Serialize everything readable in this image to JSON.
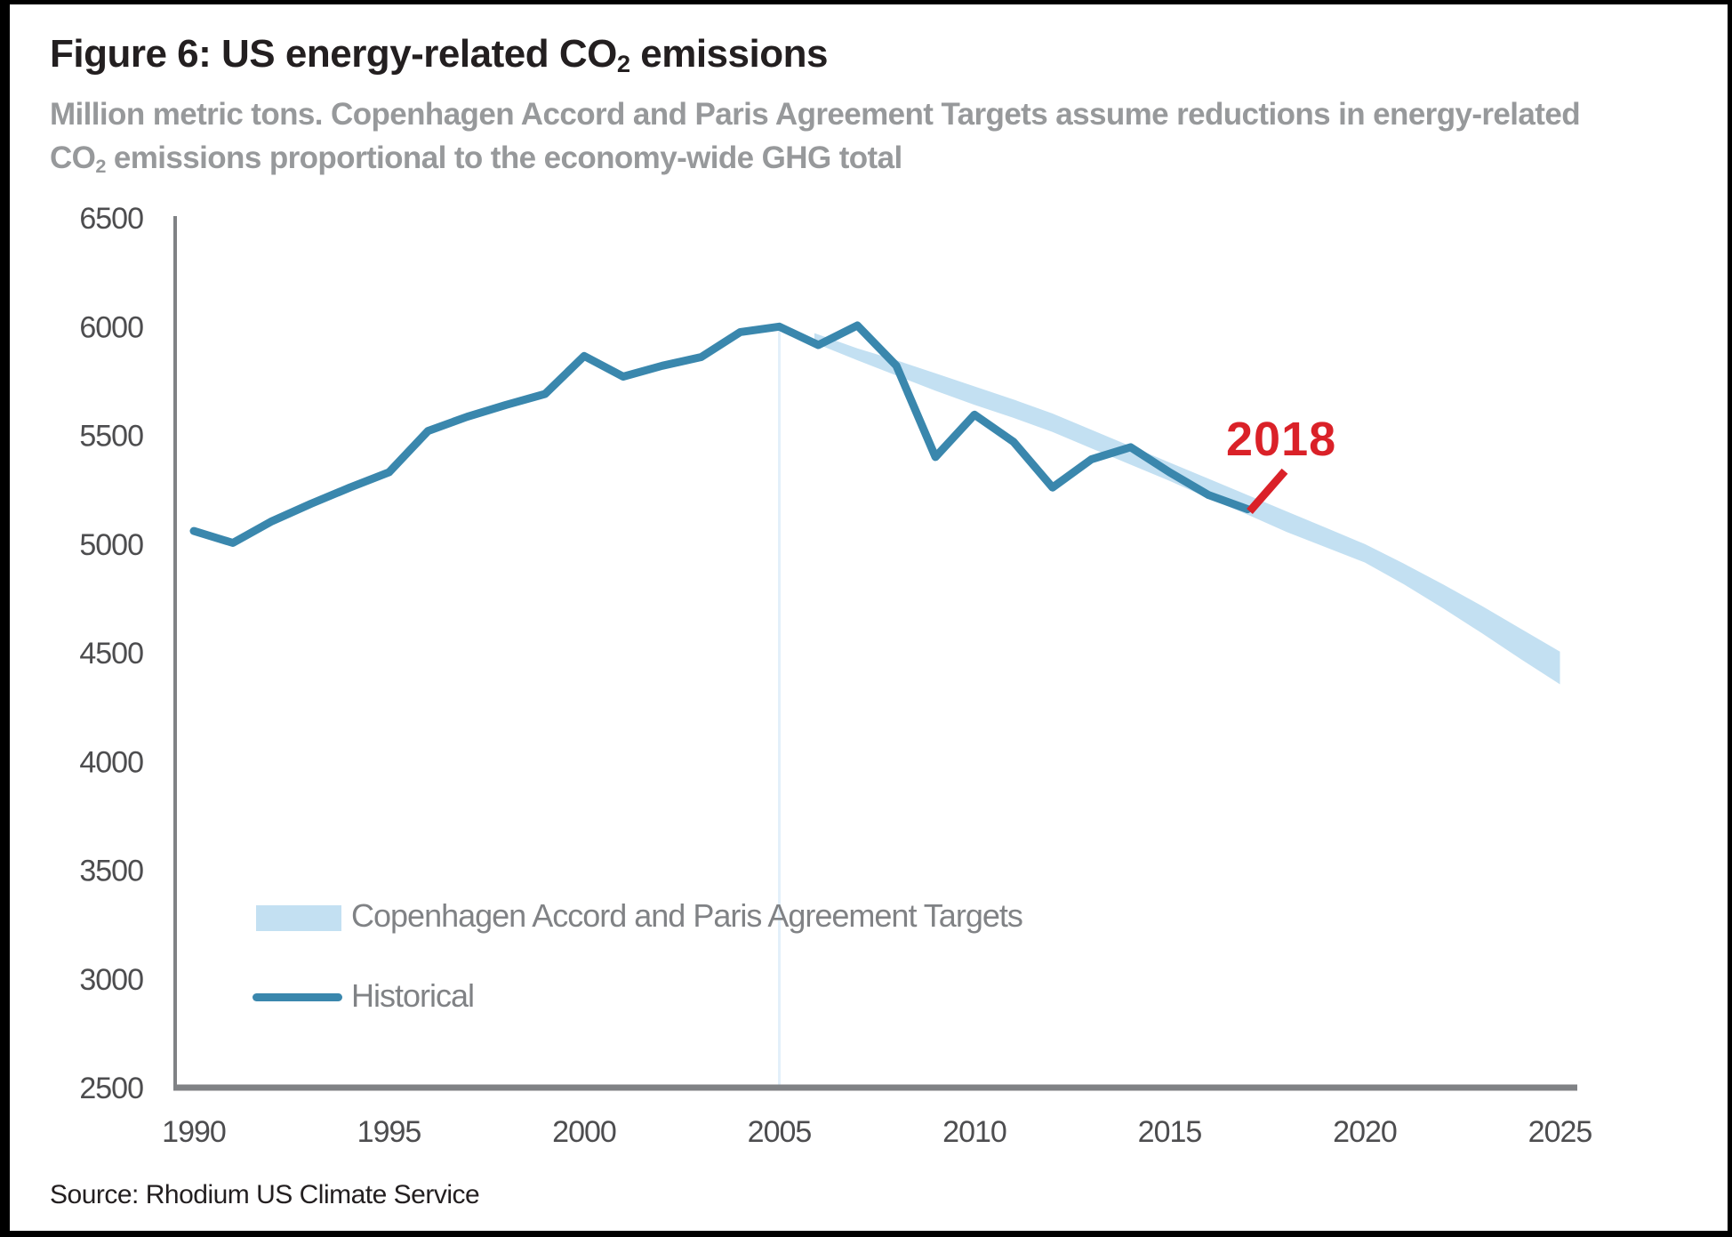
{
  "figure": {
    "title": {
      "prefix": "Figure 6: US energy-related CO",
      "subscript": "2",
      "suffix": " emissions"
    },
    "subtitle": {
      "line1": "Million metric tons. Copenhagen Accord and Paris Agreement Targets assume reductions in energy-related",
      "line2_pre": "CO",
      "line2_sub": "2",
      "line2_post": " emissions proportional to the economy-wide GHG total"
    },
    "source": "Source: Rhodium US Climate Service"
  },
  "legend": {
    "band_label": "Copenhagen Accord and Paris Agreement Targets",
    "line_label": "Historical"
  },
  "annotation_2018": {
    "label": "2018"
  },
  "colors": {
    "historical_line": "#3a87ad",
    "target_band": "#c3e0f2",
    "annotation_red": "#da2128",
    "axis_gray": "#808285",
    "tick_text": "#4d4d4f",
    "baseline_gridline": "#e3f0fa"
  },
  "chart_data": {
    "type": "line",
    "title": "Figure 6: US energy-related CO2 emissions",
    "units": "Million metric tons",
    "xlabel": "",
    "ylabel": "",
    "xlim": [
      1990,
      2025
    ],
    "ylim": [
      2500,
      6500
    ],
    "x_ticks": [
      1990,
      1995,
      2000,
      2005,
      2010,
      2015,
      2020,
      2025
    ],
    "y_ticks": [
      6500,
      6000,
      5500,
      5000,
      4500,
      4000,
      3500,
      3000,
      2500
    ],
    "grid": false,
    "legend_position": "inside-lower-left",
    "series": [
      {
        "name": "Historical",
        "type": "line",
        "color": "#3a87ad",
        "x": [
          1990,
          1991,
          1992,
          1993,
          1994,
          1995,
          1996,
          1997,
          1998,
          1999,
          2000,
          2001,
          2002,
          2003,
          2004,
          2005,
          2006,
          2007,
          2008,
          2009,
          2010,
          2011,
          2012,
          2013,
          2014,
          2015,
          2016,
          2017
        ],
        "y": [
          5060,
          5005,
          5105,
          5185,
          5260,
          5330,
          5520,
          5585,
          5640,
          5690,
          5865,
          5770,
          5820,
          5860,
          5975,
          6000,
          5915,
          6005,
          5820,
          5400,
          5595,
          5470,
          5260,
          5390,
          5445,
          5330,
          5225,
          5160
        ]
      },
      {
        "name": "Copenhagen Accord and Paris Agreement Targets",
        "type": "band",
        "color": "#c3e0f2",
        "x": [
          2005.9,
          2007,
          2008,
          2009,
          2010,
          2011,
          2012,
          2013,
          2014,
          2015,
          2016,
          2017,
          2018,
          2019,
          2020,
          2021,
          2022,
          2023,
          2024,
          2025
        ],
        "y_top": [
          5970,
          5900,
          5845,
          5785,
          5725,
          5665,
          5600,
          5525,
          5450,
          5375,
          5300,
          5225,
          5150,
          5075,
          5000,
          4910,
          4815,
          4715,
          4610,
          4505
        ],
        "y_bottom": [
          5925,
          5845,
          5775,
          5705,
          5640,
          5580,
          5515,
          5440,
          5365,
          5290,
          5210,
          5135,
          5055,
          4985,
          4915,
          4815,
          4705,
          4590,
          4470,
          4355
        ]
      }
    ],
    "baseline_marker": {
      "year": 2005,
      "from_value": 6000,
      "to_value": 2500
    },
    "annotations": [
      {
        "text": "2018",
        "color": "#da2128",
        "pointer_from": [
          2017.05,
          5150
        ],
        "pointer_to": [
          2017.95,
          5335
        ]
      }
    ]
  }
}
